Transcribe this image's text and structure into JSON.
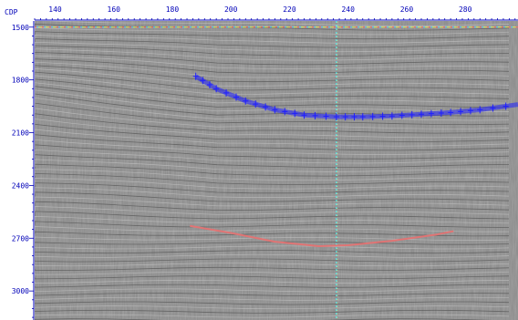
{
  "viewer": {
    "corner_label": "CDP",
    "colors": {
      "axis": "#0000b8",
      "horizon_picks": "#1f1fff",
      "horizon_line": "#e07474"
    },
    "x_axis": {
      "name": "CDP",
      "range": [
        133,
        298
      ],
      "ticks": [
        {
          "value": 140,
          "label": "140"
        },
        {
          "value": 160,
          "label": "160"
        },
        {
          "value": 180,
          "label": "180"
        },
        {
          "value": 200,
          "label": "200"
        },
        {
          "value": 220,
          "label": "220"
        },
        {
          "value": 240,
          "label": "240"
        },
        {
          "value": 260,
          "label": "260"
        },
        {
          "value": 280,
          "label": "280"
        }
      ]
    },
    "y_axis": {
      "range": [
        1465,
        3165
      ],
      "ticks": [
        {
          "value": 1500,
          "label": "1500"
        },
        {
          "value": 1800,
          "label": "1800"
        },
        {
          "value": 2100,
          "label": "2100"
        },
        {
          "value": 2400,
          "label": "2400"
        },
        {
          "value": 2700,
          "label": "2700"
        },
        {
          "value": 3000,
          "label": "3000"
        }
      ]
    },
    "time_marker": {
      "value": 1500
    },
    "cdp_marker": {
      "value": 236
    },
    "horizon_picks": {
      "points": [
        [
          188,
          1780
        ],
        [
          195,
          1850
        ],
        [
          205,
          1920
        ],
        [
          215,
          1970
        ],
        [
          225,
          2000
        ],
        [
          236,
          2010
        ],
        [
          245,
          2010
        ],
        [
          255,
          2005
        ],
        [
          265,
          1995
        ],
        [
          275,
          1985
        ],
        [
          285,
          1970
        ],
        [
          298,
          1940
        ]
      ]
    },
    "horizon_line": {
      "points": [
        [
          186,
          2630
        ],
        [
          200,
          2670
        ],
        [
          215,
          2720
        ],
        [
          230,
          2745
        ],
        [
          240,
          2740
        ],
        [
          255,
          2715
        ],
        [
          270,
          2680
        ],
        [
          276,
          2660
        ]
      ]
    }
  }
}
